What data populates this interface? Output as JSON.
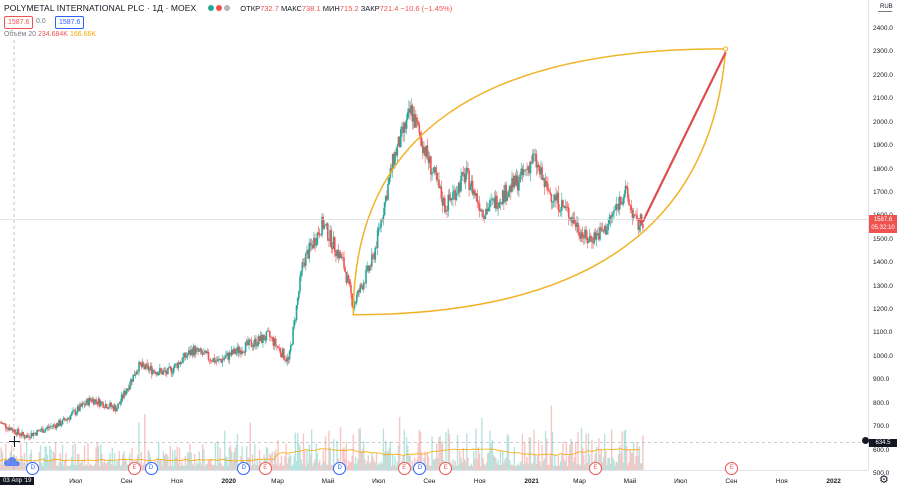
{
  "header": {
    "symbol": "POLYMETAL INTERNATIONAL PLC · 1Д · MOEX",
    "ohlc": [
      {
        "label": "ОТКР",
        "value": "732.7"
      },
      {
        "label": "МАКС",
        "value": "738.1"
      },
      {
        "label": "МИН",
        "value": "715.2"
      },
      {
        "label": "ЗАКР",
        "value": "721.4"
      }
    ],
    "change": "−10.6 (−1.45%)",
    "sell_price": "1587.6",
    "spread": "0.0",
    "buy_price": "1587.6",
    "dot_colors": [
      "#26a69a",
      "#ef5350",
      "#b2b5be"
    ]
  },
  "volume": {
    "label": "Объём 20",
    "value": "234.684K",
    "ma_value": "166.66K"
  },
  "currency": "RUB",
  "price_axis": [
    "2400.0",
    "2300.0",
    "2200.0",
    "2100.0",
    "2000.0",
    "1900.0",
    "1800.0",
    "1700.0",
    "1600.0",
    "1500.0",
    "1400.0",
    "1300.0",
    "1200.0",
    "1100.0",
    "1000.0",
    "900.0",
    "800.0",
    "700.0",
    "600.0",
    "500.0"
  ],
  "last_price": {
    "value": "1587.6",
    "countdown": "05:32:10"
  },
  "crosshair_price": "634.5",
  "crosshair_date": "03 Апр '19",
  "time_axis": [
    "Май",
    "Июл",
    "Сен",
    "Ноя",
    "2020",
    "Мар",
    "Май",
    "Июл",
    "Сен",
    "Ноя",
    "2021",
    "Мар",
    "Май",
    "Июл",
    "Сен",
    "Ноя",
    "2022"
  ],
  "events": [
    {
      "letter": "D",
      "type": "dividend"
    },
    {
      "letter": "E",
      "type": "earnings"
    },
    {
      "letter": "D",
      "type": "dividend"
    },
    {
      "letter": "D",
      "type": "dividend"
    },
    {
      "letter": "E",
      "type": "earnings"
    },
    {
      "letter": "D",
      "type": "dividend"
    },
    {
      "letter": "E",
      "type": "earnings"
    },
    {
      "letter": "D",
      "type": "dividend"
    },
    {
      "letter": "E",
      "type": "earnings"
    },
    {
      "letter": "E",
      "type": "earnings"
    },
    {
      "letter": "E",
      "type": "earnings"
    }
  ],
  "colors": {
    "up": "#26a69a",
    "down": "#ef5350",
    "drawing": "#f0b429",
    "arrow": "#e04c4c"
  },
  "chart_data": {
    "type": "candlestick",
    "y_scale": "linear",
    "ylim": [
      500,
      2430
    ],
    "x_range": [
      "2019-04-01",
      "2022-02-01"
    ],
    "price_path": [
      {
        "date": "2019-04-01",
        "price": 720
      },
      {
        "date": "2019-05-01",
        "price": 660
      },
      {
        "date": "2019-06-15",
        "price": 720
      },
      {
        "date": "2019-07-20",
        "price": 820
      },
      {
        "date": "2019-08-20",
        "price": 780
      },
      {
        "date": "2019-09-15",
        "price": 960
      },
      {
        "date": "2019-10-20",
        "price": 930
      },
      {
        "date": "2019-11-20",
        "price": 1030
      },
      {
        "date": "2019-12-20",
        "price": 980
      },
      {
        "date": "2020-01-20",
        "price": 1040
      },
      {
        "date": "2020-02-20",
        "price": 1090
      },
      {
        "date": "2020-03-15",
        "price": 980
      },
      {
        "date": "2020-04-01",
        "price": 1400
      },
      {
        "date": "2020-04-25",
        "price": 1570
      },
      {
        "date": "2020-05-20",
        "price": 1400
      },
      {
        "date": "2020-06-01",
        "price": 1220
      },
      {
        "date": "2020-06-25",
        "price": 1420
      },
      {
        "date": "2020-07-20",
        "price": 1850
      },
      {
        "date": "2020-08-10",
        "price": 2050
      },
      {
        "date": "2020-08-25",
        "price": 1900
      },
      {
        "date": "2020-09-20",
        "price": 1640
      },
      {
        "date": "2020-10-15",
        "price": 1780
      },
      {
        "date": "2020-11-05",
        "price": 1620
      },
      {
        "date": "2020-11-25",
        "price": 1680
      },
      {
        "date": "2020-12-20",
        "price": 1760
      },
      {
        "date": "2021-01-05",
        "price": 1850
      },
      {
        "date": "2021-01-20",
        "price": 1720
      },
      {
        "date": "2021-02-15",
        "price": 1620
      },
      {
        "date": "2021-03-10",
        "price": 1500
      },
      {
        "date": "2021-04-01",
        "price": 1540
      },
      {
        "date": "2021-04-25",
        "price": 1710
      },
      {
        "date": "2021-05-10",
        "price": 1560
      },
      {
        "date": "2021-05-18",
        "price": 1587.6
      }
    ],
    "projection_arrow": {
      "from": {
        "date": "2021-05-20",
        "price": 1600
      },
      "to": {
        "date": "2021-08-25",
        "price": 2300
      }
    },
    "drawing_shape": "curved-leaf"
  }
}
